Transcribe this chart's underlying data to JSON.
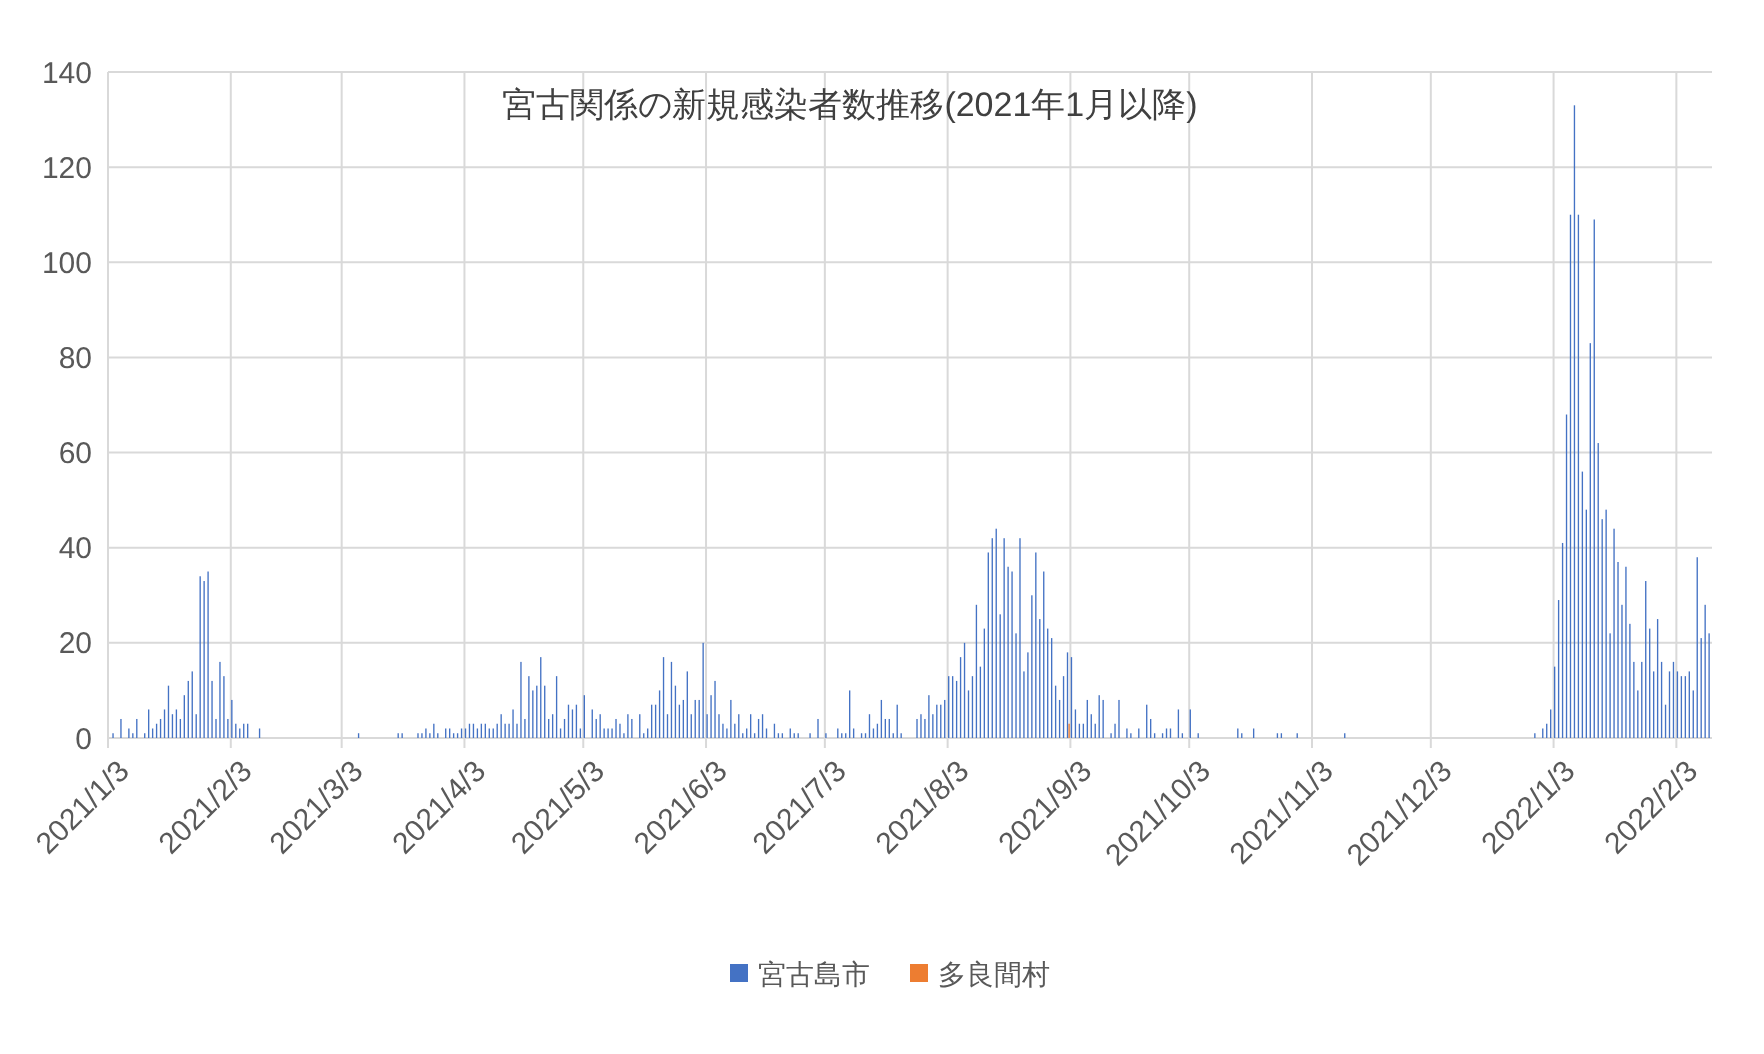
{
  "chart_data": {
    "type": "bar",
    "title": "宮古関係の新規感染者数推移(2021年1月以降)",
    "xlim": [
      "2021-01-03",
      "2022-02-12"
    ],
    "xticks": [
      {
        "value": "2021-01-03",
        "label": "2021/1/3"
      },
      {
        "value": "2021-02-03",
        "label": "2021/2/3"
      },
      {
        "value": "2021-03-03",
        "label": "2021/3/3"
      },
      {
        "value": "2021-04-03",
        "label": "2021/4/3"
      },
      {
        "value": "2021-05-03",
        "label": "2021/5/3"
      },
      {
        "value": "2021-06-03",
        "label": "2021/6/3"
      },
      {
        "value": "2021-07-03",
        "label": "2021/7/3"
      },
      {
        "value": "2021-08-03",
        "label": "2021/8/3"
      },
      {
        "value": "2021-09-03",
        "label": "2021/9/3"
      },
      {
        "value": "2021-10-03",
        "label": "2021/10/3"
      },
      {
        "value": "2021-11-03",
        "label": "2021/11/3"
      },
      {
        "value": "2021-12-03",
        "label": "2021/12/3"
      },
      {
        "value": "2022-01-03",
        "label": "2022/1/3"
      },
      {
        "value": "2022-02-03",
        "label": "2022/2/3"
      }
    ],
    "ylim": [
      0,
      140
    ],
    "yticks": [
      0,
      20,
      40,
      60,
      80,
      100,
      120,
      140
    ],
    "grid": true,
    "legend": "bottom",
    "series": [
      {
        "name": "宮古島市",
        "color": "#4472c4",
        "x": [
          "2021-01-04",
          "2021-01-06",
          "2021-01-08",
          "2021-01-09",
          "2021-01-10",
          "2021-01-12",
          "2021-01-13",
          "2021-01-14",
          "2021-01-15",
          "2021-01-16",
          "2021-01-17",
          "2021-01-18",
          "2021-01-19",
          "2021-01-20",
          "2021-01-21",
          "2021-01-22",
          "2021-01-23",
          "2021-01-24",
          "2021-01-25",
          "2021-01-26",
          "2021-01-27",
          "2021-01-28",
          "2021-01-29",
          "2021-01-30",
          "2021-01-31",
          "2021-02-01",
          "2021-02-02",
          "2021-02-03",
          "2021-02-04",
          "2021-02-05",
          "2021-02-06",
          "2021-02-07",
          "2021-02-10",
          "2021-03-07",
          "2021-03-17",
          "2021-03-18",
          "2021-03-22",
          "2021-03-23",
          "2021-03-24",
          "2021-03-25",
          "2021-03-26",
          "2021-03-27",
          "2021-03-29",
          "2021-03-30",
          "2021-03-31",
          "2021-04-01",
          "2021-04-02",
          "2021-04-03",
          "2021-04-04",
          "2021-04-05",
          "2021-04-06",
          "2021-04-07",
          "2021-04-08",
          "2021-04-09",
          "2021-04-10",
          "2021-04-11",
          "2021-04-12",
          "2021-04-13",
          "2021-04-14",
          "2021-04-15",
          "2021-04-16",
          "2021-04-17",
          "2021-04-18",
          "2021-04-19",
          "2021-04-20",
          "2021-04-21",
          "2021-04-22",
          "2021-04-23",
          "2021-04-24",
          "2021-04-25",
          "2021-04-26",
          "2021-04-27",
          "2021-04-28",
          "2021-04-29",
          "2021-04-30",
          "2021-05-01",
          "2021-05-02",
          "2021-05-03",
          "2021-05-05",
          "2021-05-06",
          "2021-05-07",
          "2021-05-08",
          "2021-05-09",
          "2021-05-10",
          "2021-05-11",
          "2021-05-12",
          "2021-05-13",
          "2021-05-14",
          "2021-05-15",
          "2021-05-17",
          "2021-05-18",
          "2021-05-19",
          "2021-05-20",
          "2021-05-21",
          "2021-05-22",
          "2021-05-23",
          "2021-05-24",
          "2021-05-25",
          "2021-05-26",
          "2021-05-27",
          "2021-05-28",
          "2021-05-29",
          "2021-05-30",
          "2021-05-31",
          "2021-06-01",
          "2021-06-02",
          "2021-06-03",
          "2021-06-04",
          "2021-06-05",
          "2021-06-06",
          "2021-06-07",
          "2021-06-08",
          "2021-06-09",
          "2021-06-10",
          "2021-06-11",
          "2021-06-12",
          "2021-06-13",
          "2021-06-14",
          "2021-06-15",
          "2021-06-16",
          "2021-06-17",
          "2021-06-18",
          "2021-06-20",
          "2021-06-21",
          "2021-06-22",
          "2021-06-24",
          "2021-06-25",
          "2021-06-26",
          "2021-06-29",
          "2021-07-01",
          "2021-07-03",
          "2021-07-06",
          "2021-07-07",
          "2021-07-08",
          "2021-07-09",
          "2021-07-10",
          "2021-07-12",
          "2021-07-13",
          "2021-07-14",
          "2021-07-15",
          "2021-07-16",
          "2021-07-17",
          "2021-07-18",
          "2021-07-19",
          "2021-07-20",
          "2021-07-21",
          "2021-07-22",
          "2021-07-26",
          "2021-07-27",
          "2021-07-28",
          "2021-07-29",
          "2021-07-30",
          "2021-07-31",
          "2021-08-01",
          "2021-08-02",
          "2021-08-03",
          "2021-08-04",
          "2021-08-05",
          "2021-08-06",
          "2021-08-07",
          "2021-08-08",
          "2021-08-09",
          "2021-08-10",
          "2021-08-11",
          "2021-08-12",
          "2021-08-13",
          "2021-08-14",
          "2021-08-15",
          "2021-08-16",
          "2021-08-17",
          "2021-08-18",
          "2021-08-19",
          "2021-08-20",
          "2021-08-21",
          "2021-08-22",
          "2021-08-23",
          "2021-08-24",
          "2021-08-25",
          "2021-08-26",
          "2021-08-27",
          "2021-08-28",
          "2021-08-29",
          "2021-08-30",
          "2021-08-31",
          "2021-09-01",
          "2021-09-02",
          "2021-09-03",
          "2021-09-04",
          "2021-09-05",
          "2021-09-06",
          "2021-09-07",
          "2021-09-08",
          "2021-09-09",
          "2021-09-10",
          "2021-09-11",
          "2021-09-13",
          "2021-09-14",
          "2021-09-15",
          "2021-09-17",
          "2021-09-18",
          "2021-09-20",
          "2021-09-22",
          "2021-09-23",
          "2021-09-24",
          "2021-09-26",
          "2021-09-27",
          "2021-09-28",
          "2021-09-30",
          "2021-10-01",
          "2021-10-03",
          "2021-10-05",
          "2021-10-15",
          "2021-10-16",
          "2021-10-19",
          "2021-10-25",
          "2021-10-26",
          "2021-10-30",
          "2021-11-11",
          "2021-12-29",
          "2021-12-31",
          "2022-01-01",
          "2022-01-02",
          "2022-01-03",
          "2022-01-04",
          "2022-01-05",
          "2022-01-06",
          "2022-01-07",
          "2022-01-08",
          "2022-01-09",
          "2022-01-10",
          "2022-01-11",
          "2022-01-12",
          "2022-01-13",
          "2022-01-14",
          "2022-01-15",
          "2022-01-16",
          "2022-01-17",
          "2022-01-18",
          "2022-01-19",
          "2022-01-20",
          "2022-01-21",
          "2022-01-22",
          "2022-01-23",
          "2022-01-24",
          "2022-01-25",
          "2022-01-26",
          "2022-01-27",
          "2022-01-28",
          "2022-01-29",
          "2022-01-30",
          "2022-01-31",
          "2022-02-01",
          "2022-02-02",
          "2022-02-03",
          "2022-02-04",
          "2022-02-05",
          "2022-02-06",
          "2022-02-07",
          "2022-02-08",
          "2022-02-09",
          "2022-02-10",
          "2022-02-11"
        ],
        "values": [
          1,
          4,
          2,
          1,
          4,
          1,
          6,
          2,
          3,
          4,
          6,
          11,
          5,
          6,
          4,
          9,
          12,
          14,
          5,
          34,
          33,
          35,
          12,
          4,
          16,
          13,
          4,
          8,
          3,
          2,
          3,
          3,
          2,
          1,
          1,
          1,
          1,
          1,
          2,
          1,
          3,
          1,
          2,
          2,
          1,
          1,
          2,
          2,
          3,
          3,
          2,
          3,
          3,
          2,
          2,
          3,
          5,
          3,
          3,
          6,
          3,
          16,
          4,
          13,
          10,
          11,
          17,
          11,
          4,
          5,
          13,
          2,
          4,
          7,
          6,
          7,
          2,
          9,
          6,
          4,
          5,
          2,
          2,
          2,
          4,
          3,
          1,
          5,
          4,
          5,
          1,
          2,
          7,
          7,
          10,
          17,
          5,
          16,
          11,
          7,
          8,
          14,
          5,
          8,
          8,
          20,
          5,
          9,
          12,
          5,
          3,
          2,
          8,
          3,
          5,
          1,
          2,
          5,
          1,
          4,
          5,
          2,
          3,
          1,
          1,
          2,
          1,
          1,
          1,
          4,
          1,
          2,
          1,
          1,
          10,
          2,
          1,
          1,
          5,
          2,
          3,
          8,
          4,
          4,
          1,
          7,
          1,
          4,
          5,
          4,
          9,
          5,
          7,
          7,
          8,
          13,
          13,
          12,
          17,
          20,
          10,
          13,
          28,
          15,
          23,
          39,
          42,
          44,
          26,
          42,
          36,
          35,
          22,
          42,
          14,
          18,
          30,
          39,
          25,
          35,
          23,
          21,
          11,
          8,
          13,
          18,
          17,
          6,
          3,
          3,
          8,
          5,
          3,
          9,
          8,
          1,
          3,
          8,
          2,
          1,
          2,
          7,
          4,
          1,
          1,
          2,
          2,
          6,
          1,
          6,
          1,
          2,
          1,
          2,
          1,
          1,
          1,
          1,
          1,
          2,
          3,
          6,
          15,
          29,
          41,
          68,
          110,
          133,
          110,
          56,
          48,
          83,
          109,
          62,
          46,
          48,
          22,
          44,
          37,
          28,
          36,
          24,
          16,
          10,
          16,
          33,
          23,
          14,
          25,
          16,
          7,
          14,
          16,
          14,
          13,
          13,
          14,
          10,
          38,
          21,
          28,
          22
        ]
      },
      {
        "name": "多良間村",
        "color": "#ed7d31",
        "x": [
          "2021-09-02"
        ],
        "values": [
          3
        ]
      }
    ]
  }
}
